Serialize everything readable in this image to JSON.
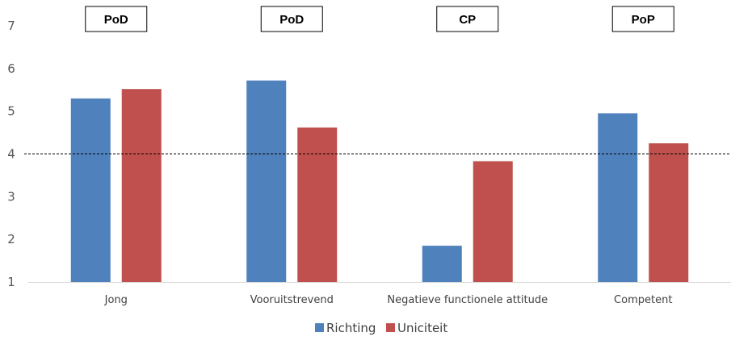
{
  "chart_data": {
    "type": "bar",
    "categories": [
      "Jong",
      "Vooruitstrevend",
      "Negatieve functionele attitude",
      "Competent"
    ],
    "series": [
      {
        "name": "Richting",
        "values": [
          5.3,
          5.72,
          1.85,
          4.95
        ],
        "color": "#4F81BD"
      },
      {
        "name": "Uniciteit",
        "values": [
          5.52,
          4.62,
          3.83,
          4.25
        ],
        "color": "#C0504D"
      }
    ],
    "category_tags": [
      "PoD",
      "PoD",
      "CP",
      "PoP"
    ],
    "y_ticks": [
      "1",
      "2",
      "3",
      "4",
      "5",
      "6",
      "7"
    ],
    "ylim": [
      1,
      7
    ],
    "reference_line": 4,
    "reference_line_style": "dashed",
    "title": "",
    "xlabel": "",
    "ylabel": "",
    "grid": false,
    "legend_position": "bottom-center"
  }
}
